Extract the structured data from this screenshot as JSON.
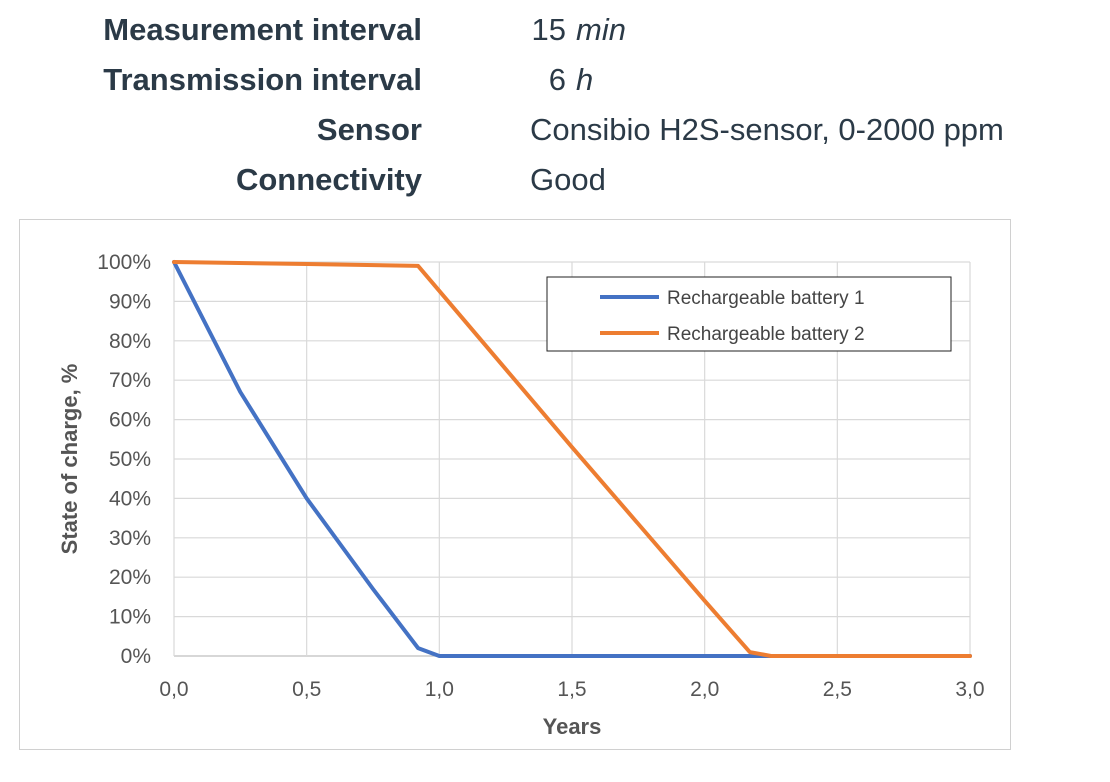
{
  "specs": [
    {
      "label": "Measurement interval",
      "value": "15",
      "unit": "min"
    },
    {
      "label": "Transmission interval",
      "value": "6",
      "unit": "h"
    },
    {
      "label": "Sensor",
      "value": "Consibio H2S-sensor, 0-2000 ppm",
      "unit": ""
    },
    {
      "label": "Connectivity",
      "value": "Good",
      "unit": ""
    }
  ],
  "chart_data": {
    "type": "line",
    "xlabel": "Years",
    "ylabel": "State of charge, %",
    "xlim": [
      0,
      3
    ],
    "ylim": [
      0,
      100
    ],
    "x_ticks": [
      "0,0",
      "0,5",
      "1,0",
      "1,5",
      "2,0",
      "2,5",
      "3,0"
    ],
    "y_ticks": [
      "0%",
      "10%",
      "20%",
      "30%",
      "40%",
      "50%",
      "60%",
      "70%",
      "80%",
      "90%",
      "100%"
    ],
    "grid": true,
    "legend_position": "top-right",
    "series": [
      {
        "name": "Rechargeable battery 1",
        "color": "#4472C4",
        "points": [
          [
            0,
            100
          ],
          [
            0.25,
            67
          ],
          [
            0.5,
            40
          ],
          [
            0.75,
            17
          ],
          [
            0.92,
            2
          ],
          [
            1.0,
            0
          ],
          [
            3.0,
            0
          ]
        ]
      },
      {
        "name": "Rechargeable battery 2",
        "color": "#ED7D31",
        "points": [
          [
            0,
            100
          ],
          [
            0.5,
            99.5
          ],
          [
            0.92,
            99
          ],
          [
            1.5,
            53
          ],
          [
            2.0,
            14
          ],
          [
            2.17,
            1
          ],
          [
            2.25,
            0
          ],
          [
            3.0,
            0
          ]
        ]
      }
    ]
  }
}
